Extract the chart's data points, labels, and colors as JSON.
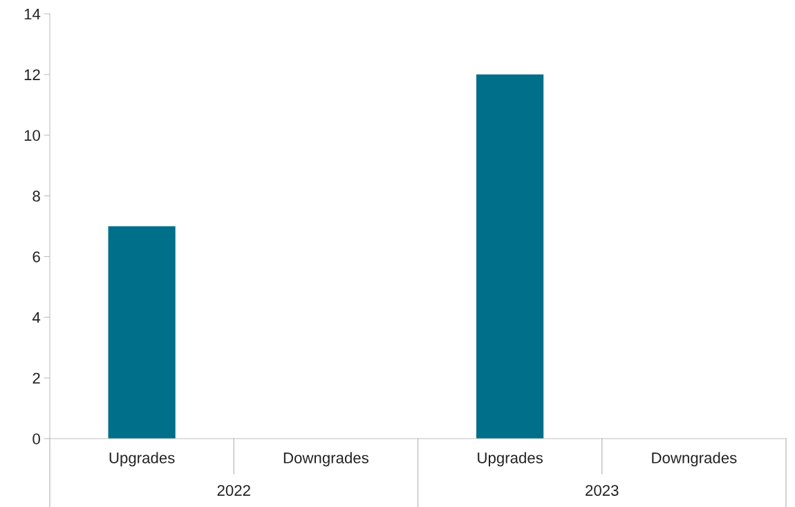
{
  "chart_data": {
    "type": "bar",
    "categories": [
      "Upgrades",
      "Downgrades",
      "Upgrades",
      "Downgrades"
    ],
    "values": [
      7,
      0,
      12,
      0
    ],
    "color": "#006f8a",
    "annotations": [
      "2022",
      "2023"
    ],
    "ylim": [
      0,
      14
    ],
    "yticks": [
      0,
      2,
      4,
      6,
      8,
      10,
      12,
      14
    ],
    "grid": false,
    "legend": false
  }
}
